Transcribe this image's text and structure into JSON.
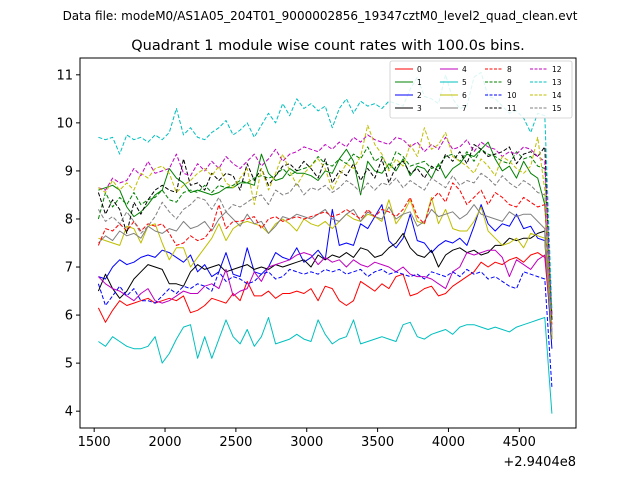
{
  "chart_data": {
    "type": "line",
    "suptitle": "Data file: modeM0/AS1A05_204T01_9000002856_19347cztM0_level2_quad_clean.evt",
    "title": "Quadrant 1 module wise count rates with 100.0s bins.",
    "xlabel": "",
    "ylabel": "",
    "x_offset_label": "+2.9404e8",
    "xlim": [
      1400,
      4900
    ],
    "ylim": [
      3.65,
      11.35
    ],
    "xticks": [
      1500,
      2000,
      2500,
      3000,
      3500,
      4000,
      4500
    ],
    "xtick_labels": [
      "1500",
      "2000",
      "2500",
      "3000",
      "3500",
      "4000",
      "4500"
    ],
    "yticks": [
      4,
      5,
      6,
      7,
      8,
      9,
      10,
      11
    ],
    "ytick_labels": [
      "4",
      "5",
      "6",
      "7",
      "8",
      "9",
      "10",
      "11"
    ],
    "legend_position": "top-right",
    "legend_columns": 4,
    "x": [
      1530,
      1580,
      1630,
      1680,
      1730,
      1780,
      1830,
      1880,
      1930,
      1980,
      2030,
      2080,
      2130,
      2180,
      2230,
      2280,
      2330,
      2380,
      2430,
      2480,
      2530,
      2580,
      2630,
      2680,
      2730,
      2780,
      2830,
      2880,
      2930,
      2980,
      3030,
      3080,
      3130,
      3180,
      3230,
      3280,
      3330,
      3380,
      3430,
      3480,
      3530,
      3580,
      3630,
      3680,
      3730,
      3780,
      3830,
      3880,
      3930,
      3980,
      4030,
      4080,
      4130,
      4180,
      4230,
      4280,
      4330,
      4380,
      4430,
      4480,
      4530,
      4580,
      4630,
      4680,
      4730
    ],
    "series": [
      {
        "name": "0",
        "color": "#ff0000",
        "dash": "solid",
        "values": [
          6.15,
          5.85,
          6.1,
          6.3,
          6.2,
          6.25,
          6.3,
          6.35,
          6.25,
          6.3,
          6.35,
          6.3,
          6.4,
          6.05,
          6.1,
          6.2,
          6.35,
          6.3,
          6.25,
          6.45,
          6.3,
          6.7,
          6.4,
          6.4,
          6.5,
          6.35,
          6.45,
          6.45,
          6.5,
          6.45,
          6.55,
          6.3,
          6.6,
          6.55,
          6.3,
          6.2,
          6.3,
          6.7,
          6.6,
          6.5,
          6.65,
          6.55,
          6.8,
          6.85,
          6.4,
          6.45,
          6.55,
          6.6,
          6.4,
          6.45,
          6.6,
          6.7,
          6.8,
          6.9,
          7.1,
          7.0,
          7.1,
          7.05,
          7.15,
          7.2,
          7.1,
          7.25,
          7.3,
          7.2,
          5.6
        ]
      },
      {
        "name": "1",
        "color": "#008000",
        "dash": "solid",
        "values": [
          8.6,
          8.65,
          8.7,
          8.6,
          8.25,
          8.05,
          8.15,
          8.3,
          8.5,
          8.6,
          9.05,
          8.85,
          8.75,
          8.55,
          8.6,
          8.55,
          8.5,
          8.55,
          8.65,
          8.65,
          8.75,
          8.75,
          8.7,
          9.35,
          8.95,
          8.8,
          8.85,
          9.05,
          8.95,
          8.95,
          8.9,
          8.8,
          9.0,
          8.95,
          9.25,
          9.45,
          9.2,
          8.5,
          9.2,
          9.0,
          8.95,
          9.15,
          9.0,
          9.25,
          8.9,
          9.1,
          9.05,
          8.85,
          9.15,
          8.85,
          9.05,
          9.15,
          9.35,
          9.3,
          9.45,
          9.6,
          9.25,
          9.0,
          9.1,
          8.85,
          9.2,
          8.95,
          8.85,
          8.3,
          5.9
        ]
      },
      {
        "name": "2",
        "color": "#0000ff",
        "dash": "solid",
        "values": [
          6.8,
          6.75,
          7.0,
          7.15,
          7.05,
          7.1,
          7.2,
          7.25,
          7.2,
          7.35,
          7.3,
          7.2,
          7.1,
          7.25,
          6.9,
          7.05,
          6.8,
          6.9,
          7.3,
          6.85,
          6.8,
          7.4,
          6.9,
          6.85,
          7.0,
          7.3,
          7.2,
          7.15,
          7.4,
          7.1,
          7.2,
          7.35,
          7.15,
          8.2,
          7.45,
          7.5,
          7.45,
          7.9,
          7.8,
          8.05,
          8.3,
          7.55,
          7.4,
          7.6,
          8.1,
          7.55,
          7.5,
          7.3,
          7.45,
          7.55,
          7.5,
          7.6,
          7.45,
          7.85,
          8.3,
          7.9,
          7.75,
          7.9,
          7.85,
          8.1,
          7.8,
          7.85,
          7.6,
          7.55,
          5.3
        ]
      },
      {
        "name": "3",
        "color": "#000000",
        "dash": "solid",
        "values": [
          6.5,
          6.85,
          6.55,
          6.35,
          6.5,
          6.75,
          6.9,
          7.05,
          7.0,
          6.95,
          6.65,
          6.65,
          6.6,
          6.9,
          7.05,
          6.95,
          7.0,
          7.05,
          6.9,
          6.95,
          7.0,
          7.05,
          6.95,
          7.0,
          6.95,
          7.05,
          7.0,
          7.05,
          7.1,
          7.15,
          7.0,
          7.25,
          7.15,
          7.25,
          7.2,
          7.3,
          7.2,
          7.4,
          7.35,
          7.2,
          7.25,
          7.4,
          7.5,
          7.7,
          7.4,
          7.25,
          7.2,
          7.35,
          7.0,
          7.25,
          7.35,
          7.4,
          7.3,
          7.35,
          7.25,
          7.3,
          7.45,
          7.45,
          7.6,
          7.55,
          7.6,
          7.6,
          7.7,
          7.75,
          5.5
        ]
      },
      {
        "name": "4",
        "color": "#bf00bf",
        "dash": "solid",
        "values": [
          6.8,
          6.65,
          6.55,
          6.5,
          6.4,
          6.3,
          6.45,
          6.55,
          6.3,
          6.25,
          6.3,
          6.4,
          6.5,
          6.45,
          6.45,
          6.6,
          6.65,
          6.55,
          6.95,
          6.4,
          6.5,
          6.55,
          6.9,
          6.7,
          7.0,
          7.05,
          7.1,
          7.15,
          7.25,
          7.3,
          7.25,
          7.05,
          7.2,
          7.1,
          7.15,
          7.0,
          7.15,
          7.05,
          7.0,
          7.1,
          7.05,
          7.0,
          6.9,
          7.0,
          6.85,
          6.8,
          6.8,
          6.75,
          6.65,
          6.55,
          6.9,
          7.0,
          7.3,
          7.25,
          7.3,
          7.35,
          7.35,
          7.2,
          6.8,
          7.15,
          7.05,
          6.95,
          7.15,
          7.25,
          5.7
        ]
      },
      {
        "name": "5",
        "color": "#00bfbf",
        "dash": "solid",
        "values": [
          5.45,
          5.35,
          5.55,
          5.45,
          5.35,
          5.3,
          5.3,
          5.35,
          5.55,
          5.0,
          5.2,
          5.5,
          5.75,
          5.8,
          5.1,
          5.55,
          5.1,
          5.5,
          5.9,
          5.55,
          5.4,
          5.7,
          5.35,
          5.55,
          5.95,
          5.4,
          5.45,
          5.5,
          5.6,
          5.5,
          5.45,
          5.9,
          5.6,
          5.4,
          5.5,
          5.55,
          5.9,
          5.4,
          5.45,
          5.5,
          5.55,
          5.5,
          5.45,
          5.8,
          5.85,
          5.55,
          5.5,
          5.6,
          5.65,
          5.7,
          5.6,
          5.75,
          5.8,
          5.8,
          5.75,
          5.7,
          5.75,
          5.7,
          5.65,
          5.75,
          5.8,
          5.85,
          5.9,
          5.95,
          3.95
        ]
      },
      {
        "name": "6",
        "color": "#bfbf00",
        "dash": "solid",
        "values": [
          7.6,
          7.55,
          7.5,
          7.45,
          7.85,
          7.8,
          7.5,
          7.85,
          7.9,
          7.5,
          7.15,
          7.4,
          7.4,
          7.0,
          7.2,
          7.4,
          7.6,
          7.9,
          7.55,
          7.8,
          7.9,
          7.95,
          7.9,
          7.85,
          7.7,
          7.9,
          8.0,
          7.9,
          7.75,
          8.0,
          7.9,
          7.85,
          7.95,
          7.8,
          7.95,
          8.1,
          8.0,
          7.95,
          8.1,
          8.05,
          7.95,
          8.4,
          7.9,
          8.1,
          8.4,
          7.95,
          7.9,
          8.45,
          7.9,
          8.2,
          7.8,
          7.75,
          7.75,
          7.95,
          8.25,
          7.75,
          7.6,
          7.45,
          7.5,
          7.6,
          7.4,
          7.7,
          7.65,
          7.6,
          5.55
        ]
      },
      {
        "name": "7",
        "color": "#808080",
        "dash": "solid",
        "values": [
          7.5,
          7.65,
          7.55,
          7.75,
          7.65,
          7.7,
          7.6,
          7.85,
          7.75,
          7.7,
          7.8,
          7.75,
          7.95,
          7.8,
          7.85,
          7.95,
          7.75,
          8.0,
          8.15,
          8.0,
          7.85,
          8.1,
          7.9,
          7.95,
          7.7,
          7.85,
          8.05,
          8.0,
          8.1,
          8.05,
          8.0,
          8.1,
          8.2,
          8.0,
          7.95,
          8.1,
          8.2,
          7.95,
          8.15,
          8.05,
          8.0,
          8.25,
          8.0,
          8.1,
          8.15,
          7.85,
          7.95,
          8.2,
          8.05,
          8.1,
          8.15,
          8.0,
          8.1,
          8.3,
          8.1,
          8.05,
          8.0,
          7.95,
          8.15,
          8.05,
          8.1,
          8.1,
          7.95,
          7.8,
          5.6
        ]
      },
      {
        "name": "8",
        "color": "#ff0000",
        "dash": "dashed",
        "values": [
          7.45,
          7.8,
          7.75,
          7.9,
          7.75,
          7.95,
          7.75,
          7.9,
          7.85,
          7.9,
          7.7,
          7.45,
          7.5,
          7.65,
          7.55,
          7.6,
          7.8,
          8.3,
          7.8,
          7.95,
          7.95,
          8.0,
          8.05,
          7.8,
          8.0,
          8.05,
          7.95,
          8.0,
          8.05,
          8.0,
          8.05,
          8.1,
          8.15,
          8.05,
          8.1,
          8.2,
          8.1,
          8.0,
          8.2,
          8.05,
          8.2,
          8.15,
          8.05,
          8.2,
          8.45,
          8.05,
          7.9,
          8.4,
          8.55,
          8.35,
          8.75,
          8.6,
          8.3,
          8.45,
          8.6,
          8.3,
          8.55,
          8.45,
          8.3,
          8.25,
          8.45,
          8.35,
          8.25,
          8.3,
          5.8
        ]
      },
      {
        "name": "9",
        "color": "#008000",
        "dash": "dashed",
        "values": [
          8.0,
          8.55,
          8.25,
          8.45,
          8.3,
          8.55,
          8.3,
          8.4,
          8.45,
          8.6,
          8.4,
          8.35,
          8.55,
          8.6,
          8.55,
          8.7,
          8.55,
          8.7,
          8.65,
          8.7,
          8.8,
          8.75,
          8.85,
          8.9,
          8.85,
          8.9,
          9.05,
          8.9,
          9.0,
          9.05,
          9.1,
          9.3,
          9.15,
          9.1,
          9.25,
          9.15,
          9.35,
          9.25,
          9.5,
          9.2,
          9.3,
          9.05,
          9.4,
          9.3,
          9.1,
          9.15,
          9.2,
          9.05,
          9.1,
          9.3,
          9.35,
          9.2,
          9.4,
          9.2,
          9.45,
          9.35,
          9.3,
          9.2,
          9.15,
          9.4,
          9.25,
          9.3,
          9.1,
          9.05,
          6.0
        ]
      },
      {
        "name": "10",
        "color": "#0000ff",
        "dash": "dashed",
        "values": [
          6.65,
          6.2,
          6.4,
          6.6,
          6.4,
          6.55,
          6.3,
          6.3,
          6.25,
          6.4,
          6.55,
          6.45,
          6.6,
          6.55,
          6.65,
          6.6,
          6.5,
          6.9,
          6.7,
          6.8,
          6.75,
          6.65,
          6.7,
          6.85,
          6.9,
          6.75,
          6.8,
          6.95,
          6.9,
          6.85,
          6.9,
          6.85,
          6.95,
          6.9,
          6.95,
          6.85,
          6.9,
          6.95,
          6.8,
          6.9,
          6.95,
          6.85,
          6.9,
          6.85,
          6.8,
          6.85,
          6.75,
          6.9,
          6.85,
          6.8,
          6.9,
          6.8,
          6.95,
          6.85,
          6.9,
          6.75,
          6.8,
          6.7,
          6.6,
          6.55,
          6.9,
          6.85,
          6.8,
          6.75,
          4.5
        ]
      },
      {
        "name": "11",
        "color": "#000000",
        "dash": "dashed",
        "values": [
          8.55,
          8.1,
          8.4,
          8.2,
          7.7,
          8.35,
          8.1,
          8.4,
          8.6,
          8.7,
          8.6,
          8.55,
          9.25,
          8.7,
          8.75,
          8.6,
          8.95,
          8.8,
          8.95,
          8.9,
          8.6,
          9.15,
          8.8,
          9.05,
          8.7,
          8.9,
          9.1,
          9.15,
          9.0,
          9.2,
          9.05,
          8.85,
          9.25,
          8.75,
          9.0,
          8.9,
          9.15,
          8.8,
          9.05,
          8.85,
          9.25,
          8.75,
          9.1,
          9.2,
          8.95,
          9.05,
          8.85,
          9.1,
          9.0,
          9.35,
          9.2,
          9.4,
          9.15,
          9.55,
          9.45,
          9.3,
          9.35,
          9.4,
          9.5,
          9.15,
          9.35,
          9.4,
          9.3,
          9.5,
          5.9
        ]
      },
      {
        "name": "12",
        "color": "#bf00bf",
        "dash": "dashed",
        "values": [
          8.65,
          8.6,
          8.85,
          8.75,
          8.8,
          9.05,
          8.9,
          9.2,
          8.95,
          9.0,
          9.05,
          9.35,
          8.95,
          8.9,
          9.15,
          9.0,
          9.2,
          9.05,
          9.3,
          9.15,
          9.05,
          9.2,
          9.35,
          9.1,
          9.25,
          9.45,
          9.2,
          9.35,
          9.4,
          9.5,
          9.45,
          9.4,
          9.55,
          9.45,
          9.6,
          9.5,
          9.7,
          9.6,
          9.75,
          9.65,
          9.6,
          9.55,
          9.7,
          9.65,
          9.5,
          9.6,
          9.4,
          9.55,
          9.45,
          9.7,
          9.45,
          9.5,
          9.65,
          9.4,
          9.6,
          9.5,
          9.45,
          9.3,
          9.4,
          9.35,
          9.5,
          9.45,
          9.3,
          9.2,
          6.0
        ]
      },
      {
        "name": "13",
        "color": "#00bfbf",
        "dash": "dashed",
        "values": [
          9.7,
          9.65,
          9.7,
          9.35,
          9.75,
          9.65,
          9.7,
          9.6,
          9.75,
          9.65,
          9.8,
          10.3,
          9.75,
          9.9,
          9.7,
          9.65,
          9.8,
          9.9,
          10.05,
          9.75,
          9.85,
          10.0,
          9.7,
          9.95,
          10.2,
          10.0,
          10.4,
          10.15,
          10.5,
          10.3,
          10.4,
          10.25,
          10.35,
          9.9,
          10.3,
          10.5,
          10.2,
          10.45,
          10.35,
          10.4,
          10.3,
          10.45,
          10.4,
          10.35,
          10.7,
          10.95,
          10.55,
          10.5,
          10.4,
          11.0,
          10.5,
          10.3,
          10.35,
          10.95,
          11.05,
          10.55,
          10.5,
          10.35,
          10.2,
          10.25,
          10.1,
          9.8,
          10.2,
          10.15,
          6.1
        ]
      },
      {
        "name": "14",
        "color": "#bfbf00",
        "dash": "dashed",
        "values": [
          8.65,
          8.55,
          8.8,
          8.6,
          8.75,
          8.6,
          8.95,
          8.85,
          9.05,
          9.1,
          8.95,
          8.55,
          8.7,
          8.8,
          8.95,
          9.05,
          8.9,
          9.1,
          8.75,
          8.65,
          8.85,
          9.05,
          8.3,
          9.05,
          8.6,
          8.95,
          9.35,
          9.0,
          8.7,
          8.95,
          9.1,
          9.25,
          9.05,
          8.6,
          8.9,
          9.15,
          9.05,
          9.3,
          9.95,
          9.55,
          9.35,
          9.0,
          9.25,
          9.1,
          9.55,
          9.3,
          9.9,
          9.45,
          9.55,
          9.8,
          9.3,
          9.2,
          9.1,
          8.95,
          9.25,
          9.1,
          8.9,
          9.3,
          9.2,
          9.05,
          8.95,
          9.1,
          9.7,
          8.6,
          5.5
        ]
      },
      {
        "name": "15",
        "color": "#808080",
        "dash": "dashed",
        "values": [
          8.2,
          7.95,
          8.05,
          7.9,
          8.15,
          7.95,
          7.7,
          7.85,
          8.05,
          8.35,
          8.15,
          8.0,
          8.2,
          8.3,
          8.45,
          8.4,
          8.2,
          8.45,
          8.15,
          8.3,
          8.25,
          8.35,
          8.45,
          8.5,
          8.3,
          8.6,
          8.5,
          8.55,
          8.75,
          8.5,
          8.65,
          8.6,
          8.7,
          8.55,
          8.65,
          8.8,
          8.7,
          8.55,
          8.75,
          8.6,
          8.75,
          8.7,
          8.85,
          8.65,
          8.8,
          8.7,
          8.6,
          8.85,
          8.75,
          8.65,
          8.9,
          8.7,
          8.8,
          8.75,
          8.95,
          8.85,
          8.7,
          8.9,
          8.75,
          8.65,
          8.8,
          8.7,
          8.55,
          8.5,
          5.65
        ]
      }
    ]
  }
}
